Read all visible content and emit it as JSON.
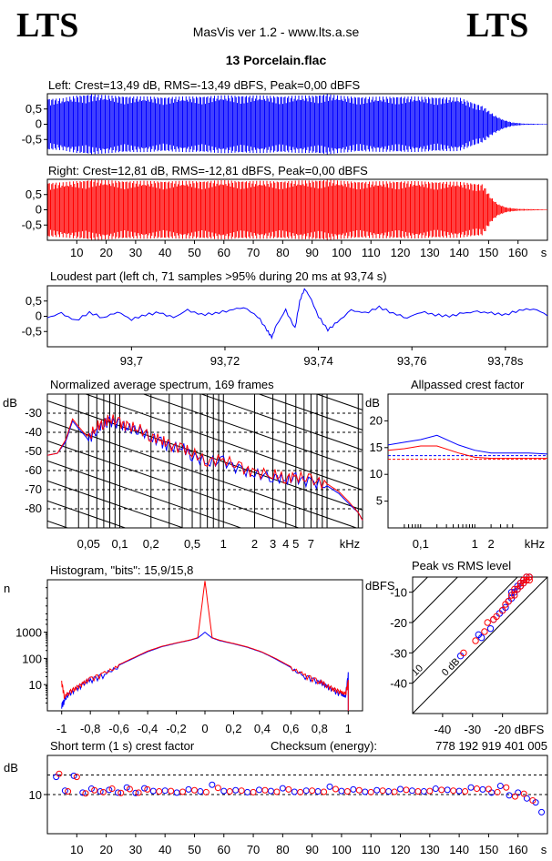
{
  "header": {
    "logo_left": "LTS",
    "logo_right": "LTS",
    "app_title": "MasVis ver 1.2 - www.lts.a.se",
    "file_name": "13 Porcelain.flac",
    "checksum_label": "Checksum (energy):",
    "checksum_value": "778 192 919 401 005"
  },
  "colors": {
    "left": "#0000ff",
    "right": "#ff0000",
    "axis": "#000000"
  },
  "chart_data": [
    {
      "id": "waveform-left",
      "type": "area",
      "title": "Left: Crest=13,49 dB, RMS=-13,49 dBFS, Peak=0,00 dBFS",
      "series": [
        {
          "name": "Left",
          "color": "#0000ff"
        }
      ],
      "y_ticks": [
        "0,5",
        "0",
        "-0,5"
      ],
      "ylim": [
        -1,
        1
      ],
      "xlim": [
        0,
        170
      ],
      "envelope": {
        "time_s": [
          0,
          5,
          10,
          15,
          20,
          30,
          40,
          50,
          60,
          70,
          80,
          90,
          95,
          100,
          110,
          120,
          130,
          140,
          148,
          152,
          155,
          158,
          162,
          170
        ],
        "amplitude": [
          0.85,
          0.85,
          0.95,
          1.0,
          0.95,
          0.92,
          0.9,
          0.92,
          0.95,
          0.95,
          0.93,
          0.95,
          1.0,
          0.93,
          0.9,
          0.92,
          0.9,
          0.88,
          0.6,
          0.3,
          0.15,
          0.06,
          0.02,
          0.01
        ]
      }
    },
    {
      "id": "waveform-right",
      "type": "area",
      "title": "Right: Crest=12,81 dB, RMS=-12,81 dBFS, Peak=0,00 dBFS",
      "series": [
        {
          "name": "Right",
          "color": "#ff0000"
        }
      ],
      "y_ticks": [
        "0,5",
        "0",
        "-0,5"
      ],
      "ylim": [
        -1,
        1
      ],
      "xlim": [
        0,
        170
      ],
      "x_ticks": [
        "10",
        "20",
        "30",
        "40",
        "50",
        "60",
        "70",
        "80",
        "90",
        "100",
        "110",
        "120",
        "130",
        "140",
        "150",
        "160"
      ],
      "x_unit": "s",
      "envelope": {
        "time_s": [
          0,
          5,
          10,
          15,
          20,
          30,
          40,
          50,
          60,
          70,
          80,
          90,
          95,
          100,
          110,
          120,
          130,
          140,
          148,
          151,
          153,
          156,
          160,
          170
        ],
        "amplitude": [
          0.9,
          0.9,
          0.95,
          1.0,
          0.97,
          0.95,
          0.95,
          0.95,
          0.97,
          0.95,
          0.95,
          0.97,
          1.0,
          0.95,
          0.93,
          0.95,
          0.93,
          0.92,
          0.85,
          0.4,
          0.2,
          0.08,
          0.03,
          0.01
        ]
      }
    },
    {
      "id": "loudest-part",
      "type": "line",
      "title": "Loudest part (left  ch, 71 samples >95% during 20 ms at 93,74 s)",
      "series": [
        {
          "name": "Left",
          "color": "#0000ff"
        }
      ],
      "y_ticks": [
        "0,5",
        "0",
        "-0,5"
      ],
      "ylim": [
        -1,
        1
      ],
      "xlim": [
        93.682,
        93.789
      ],
      "x_ticks": [
        "93,7",
        "93,72",
        "93,74",
        "93,76",
        "93,78s"
      ],
      "x": [
        93.682,
        93.685,
        93.688,
        93.691,
        93.694,
        93.697,
        93.7,
        93.703,
        93.706,
        93.709,
        93.712,
        93.715,
        93.718,
        93.721,
        93.724,
        93.727,
        93.729,
        93.73,
        93.731,
        93.733,
        93.735,
        93.736,
        93.737,
        93.738,
        93.74,
        93.742,
        93.744,
        93.747,
        93.75,
        93.753,
        93.756,
        93.759,
        93.762,
        93.765,
        93.768,
        93.771,
        93.774,
        93.777,
        93.78,
        93.783,
        93.786,
        93.789
      ],
      "y": [
        -0.05,
        0.1,
        -0.15,
        0.12,
        -0.05,
        0.15,
        -0.1,
        0.05,
        0.12,
        -0.05,
        0.2,
        0.05,
        0.1,
        0.2,
        0.3,
        0.0,
        -0.45,
        -0.7,
        -0.3,
        0.2,
        -0.4,
        0.5,
        0.9,
        0.7,
        0.0,
        -0.45,
        -0.2,
        0.2,
        0.1,
        0.3,
        0.1,
        -0.05,
        0.15,
        0.05,
        0.0,
        0.1,
        0.15,
        0.1,
        0.05,
        0.2,
        0.25,
        0.05
      ]
    },
    {
      "id": "spectrum",
      "type": "line",
      "title": "Normalized average spectrum, 169 frames",
      "ylabel": "dB",
      "y_ticks": [
        "-30",
        "-40",
        "-50",
        "-60",
        "-70",
        "-80"
      ],
      "ylim": [
        -90,
        -20
      ],
      "xlim": [
        0.02,
        22
      ],
      "x_scale": "log",
      "x_ticks": [
        "0,05",
        "0,1",
        "0,2",
        "0,5",
        "1",
        "2",
        "3",
        "4",
        "5",
        "7",
        "kHz"
      ],
      "x_khz": [
        0.02,
        0.025,
        0.03,
        0.035,
        0.04,
        0.05,
        0.06,
        0.07,
        0.08,
        0.1,
        0.12,
        0.15,
        0.2,
        0.25,
        0.3,
        0.4,
        0.5,
        0.7,
        1,
        1.5,
        2,
        3,
        4,
        5,
        7,
        10,
        13,
        16,
        20,
        22
      ],
      "series": [
        {
          "name": "Left",
          "color": "#0000ff",
          "values": [
            -52,
            -51,
            -45,
            -34,
            -38,
            -44,
            -38,
            -36,
            -34,
            -36,
            -38,
            -38,
            -43,
            -45,
            -48,
            -48,
            -52,
            -56,
            -55,
            -60,
            -62,
            -63,
            -65,
            -64,
            -66,
            -68,
            -72,
            -77,
            -82,
            -86
          ]
        },
        {
          "name": "Right",
          "color": "#ff0000",
          "values": [
            -52,
            -51,
            -44,
            -33,
            -37,
            -43,
            -37,
            -35,
            -33,
            -35,
            -37,
            -38,
            -42,
            -44,
            -47,
            -48,
            -51,
            -55,
            -54,
            -59,
            -61,
            -62,
            -64,
            -63,
            -65,
            -67,
            -71,
            -76,
            -82,
            -86
          ]
        }
      ]
    },
    {
      "id": "allpassed-crest",
      "type": "line",
      "title": "Allpassed crest factor",
      "ylabel": "dB",
      "y_ticks": [
        "20",
        "15",
        "10",
        "5"
      ],
      "ylim": [
        0,
        25
      ],
      "x_scale": "log",
      "xlim": [
        0.025,
        22
      ],
      "x_ticks": [
        "0,1",
        "1",
        "2",
        "kHz"
      ],
      "x_khz": [
        0.025,
        0.05,
        0.1,
        0.2,
        0.5,
        1,
        2,
        5,
        10,
        22
      ],
      "reference_lines": [
        13.49,
        12.81
      ],
      "series": [
        {
          "name": "Left",
          "color": "#0000ff",
          "values": [
            15.5,
            16,
            16.5,
            17.3,
            15.5,
            14.5,
            14,
            14,
            14,
            13.8
          ]
        },
        {
          "name": "Right",
          "color": "#ff0000",
          "values": [
            14.5,
            14.8,
            15.3,
            15.3,
            14,
            13.2,
            13,
            13,
            13,
            13
          ]
        }
      ]
    },
    {
      "id": "histogram",
      "type": "line",
      "title": "Histogram, \"bits\": 15,9/15,8",
      "ylabel": "n",
      "y_scale": "log",
      "y_ticks": [
        "1000",
        "100",
        "10"
      ],
      "ylim": [
        1,
        100000
      ],
      "xlim": [
        -1.1,
        1.1
      ],
      "x_ticks": [
        "-1",
        "-0,8",
        "-0,6",
        "-0,4",
        "-0,2",
        "0",
        "0,2",
        "0,4",
        "0,6",
        "0,8",
        "1"
      ],
      "x": [
        -1.0,
        -0.98,
        -0.95,
        -0.9,
        -0.85,
        -0.8,
        -0.7,
        -0.6,
        -0.5,
        -0.4,
        -0.3,
        -0.2,
        -0.1,
        -0.05,
        0,
        0.05,
        0.1,
        0.2,
        0.3,
        0.4,
        0.5,
        0.6,
        0.7,
        0.8,
        0.85,
        0.9,
        0.95,
        0.98,
        1.0
      ],
      "series": [
        {
          "name": "Left",
          "color": "#0000ff",
          "values": [
            2,
            3,
            5,
            8,
            12,
            18,
            30,
            55,
            100,
            180,
            280,
            380,
            500,
            600,
            1000,
            600,
            480,
            360,
            260,
            170,
            90,
            45,
            25,
            15,
            10,
            7,
            5,
            4,
            30
          ]
        },
        {
          "name": "Right",
          "color": "#ff0000",
          "values": [
            15,
            4,
            6,
            9,
            13,
            20,
            32,
            58,
            105,
            190,
            290,
            390,
            510,
            620,
            90000,
            620,
            500,
            370,
            270,
            175,
            95,
            48,
            27,
            16,
            11,
            8,
            6,
            5,
            15
          ]
        }
      ]
    },
    {
      "id": "peak-vs-rms",
      "type": "scatter",
      "title": "Peak vs RMS level",
      "ylabel": "dBFS",
      "xlabel": "dBFS",
      "xlim": [
        -50,
        -5
      ],
      "ylim": [
        -50,
        -5
      ],
      "x_ticks": [
        "-40",
        "-30",
        "-20"
      ],
      "y_ticks": [
        "-10",
        "-20",
        "-30",
        "-40"
      ],
      "crest_line_labels": [
        "40",
        "30",
        "20",
        "10",
        "0 dB"
      ],
      "series": [
        {
          "name": "Left",
          "color": "#0000ff",
          "x": [
            -34,
            -28,
            -27,
            -24,
            -23,
            -21,
            -20,
            -19,
            -18,
            -17,
            -17,
            -16,
            -15,
            -15,
            -14,
            -14,
            -13,
            -13,
            -12,
            -12,
            -11
          ],
          "y": [
            -31,
            -24,
            -25,
            -22,
            -19,
            -17,
            -16,
            -15,
            -13,
            -12,
            -10,
            -10,
            -9,
            -8,
            -8,
            -7,
            -6,
            -7,
            -5,
            -6,
            -5
          ]
        },
        {
          "name": "Right",
          "color": "#ff0000",
          "x": [
            -33,
            -29,
            -26,
            -25,
            -23,
            -22,
            -20,
            -19,
            -18,
            -17,
            -16,
            -16,
            -15,
            -14,
            -14,
            -13,
            -13,
            -12,
            -12,
            -11,
            -11
          ],
          "y": [
            -30,
            -26,
            -23,
            -20,
            -19,
            -18,
            -16,
            -14,
            -13,
            -11,
            -11,
            -9,
            -9,
            -8,
            -7,
            -7,
            -6,
            -6,
            -5,
            -5,
            -6
          ]
        }
      ]
    },
    {
      "id": "short-term-crest",
      "type": "scatter",
      "title": "Short term (1 s) crest factor",
      "ylabel": "dB",
      "y_ticks": [
        "10"
      ],
      "ylim": [
        0,
        20
      ],
      "xlim": [
        0,
        170
      ],
      "x_ticks": [
        "10",
        "20",
        "30",
        "40",
        "50",
        "60",
        "70",
        "80",
        "90",
        "100",
        "110",
        "120",
        "130",
        "140",
        "150",
        "160"
      ],
      "x_unit": "s",
      "reference_lines": [
        15,
        10
      ],
      "series": [
        {
          "name": "Left",
          "color": "#0000ff",
          "x": [
            3,
            6,
            9,
            12,
            15,
            18,
            21,
            24,
            27,
            30,
            33,
            36,
            40,
            44,
            48,
            52,
            56,
            60,
            64,
            68,
            72,
            76,
            80,
            84,
            88,
            92,
            96,
            100,
            104,
            108,
            112,
            116,
            120,
            124,
            128,
            132,
            136,
            140,
            144,
            148,
            151,
            154,
            157,
            160,
            163,
            166,
            168
          ],
          "y": [
            14.5,
            11,
            14.8,
            10.5,
            11.5,
            10.8,
            11.2,
            10.5,
            11.8,
            10.4,
            11.6,
            10.9,
            11,
            10.5,
            11.3,
            10.8,
            12.5,
            10.9,
            11.1,
            10.6,
            11.2,
            10.9,
            11.6,
            10.7,
            11,
            10.8,
            12,
            10.9,
            11.3,
            10.7,
            11.1,
            10.8,
            11.4,
            11,
            10.8,
            11.5,
            11.2,
            10.9,
            11.8,
            11.3,
            10.5,
            12.2,
            9.8,
            10.5,
            9,
            8,
            5.5
          ]
        },
        {
          "name": "Right",
          "color": "#ff0000",
          "x": [
            4,
            7,
            10,
            13,
            16,
            19,
            22,
            25,
            28,
            31,
            34,
            38,
            42,
            46,
            50,
            54,
            58,
            62,
            66,
            70,
            74,
            78,
            82,
            86,
            90,
            94,
            98,
            102,
            106,
            110,
            114,
            118,
            122,
            126,
            130,
            134,
            138,
            142,
            146,
            150,
            153,
            156,
            159,
            162,
            165
          ],
          "y": [
            15.3,
            10.8,
            14.5,
            10.3,
            11.1,
            10.6,
            11.5,
            10.4,
            11.4,
            10.5,
            11.3,
            10.8,
            10.9,
            10.7,
            11.1,
            10.6,
            11.7,
            10.8,
            11,
            10.6,
            11.1,
            10.7,
            11.3,
            10.6,
            11,
            10.7,
            11.4,
            10.8,
            11.1,
            10.6,
            11,
            10.7,
            11.2,
            10.8,
            10.9,
            11.2,
            11,
            10.8,
            11.5,
            11.4,
            10.6,
            11.8,
            9.5,
            10.2,
            8.5
          ]
        }
      ]
    }
  ]
}
